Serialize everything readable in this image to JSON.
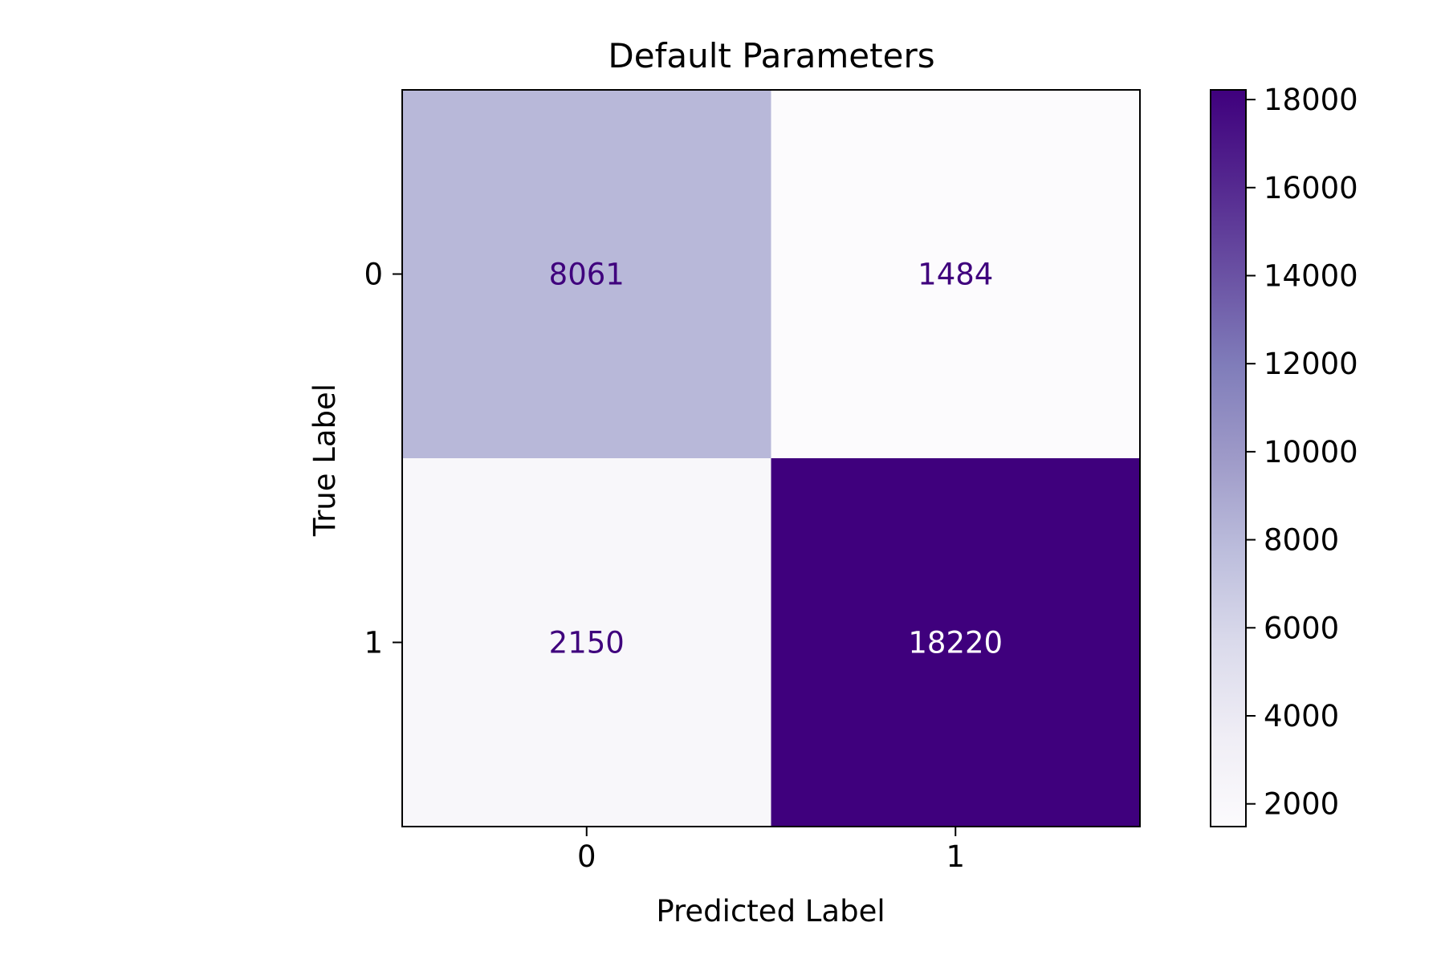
{
  "chart_data": {
    "type": "heatmap",
    "title": "Default Parameters",
    "xlabel": "Predicted Label",
    "ylabel": "True Label",
    "x_categories": [
      "0",
      "1"
    ],
    "y_categories": [
      "0",
      "1"
    ],
    "values": [
      [
        8061,
        1484
      ],
      [
        2150,
        18220
      ]
    ],
    "colormap": "Purples",
    "colorbar": {
      "range": [
        1484,
        18220
      ],
      "ticks": [
        2000,
        4000,
        6000,
        8000,
        10000,
        12000,
        14000,
        16000,
        18000
      ],
      "tick_labels": [
        "2000",
        "4000",
        "6000",
        "8000",
        "10000",
        "12000",
        "14000",
        "16000",
        "18000"
      ]
    },
    "grid": false,
    "cell_label_colors": {
      "dark": "#3f007d",
      "light": "#ffffff"
    }
  }
}
